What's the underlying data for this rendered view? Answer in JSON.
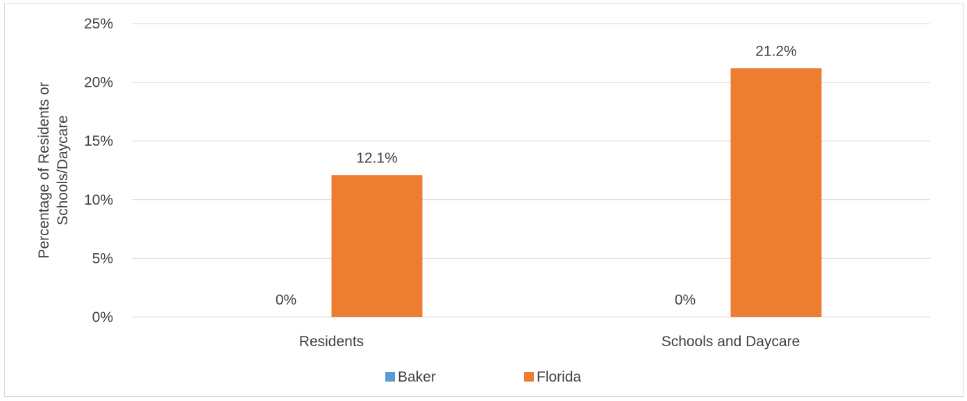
{
  "chart_data": {
    "type": "bar",
    "categories": [
      "Residents",
      "Schools and Daycare"
    ],
    "series": [
      {
        "name": "Baker",
        "values": [
          0,
          0
        ],
        "color": "#5b9bd5",
        "labels": [
          "0%",
          "0%"
        ]
      },
      {
        "name": "Florida",
        "values": [
          12.1,
          21.2
        ],
        "color": "#ed7d31",
        "labels": [
          "12.1%",
          "21.2%"
        ]
      }
    ],
    "title": "",
    "xlabel": "",
    "ylabel": "Percentage of Residents or Schools/Daycare",
    "ylabel_lines": [
      "Percentage of Residents or",
      "Schools/Daycare"
    ],
    "ylim": [
      0,
      25
    ],
    "yticks": [
      0,
      5,
      10,
      15,
      20,
      25
    ],
    "ytick_labels": [
      "0%",
      "5%",
      "10%",
      "15%",
      "20%",
      "25%"
    ],
    "grid": true,
    "legend_position": "bottom",
    "gridline_color": "#d9d9d9"
  }
}
